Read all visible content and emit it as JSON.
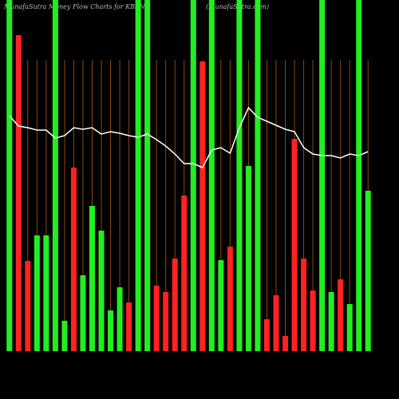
{
  "chart_data": {
    "type": "bar",
    "title": "MunafaSutra Money Flow Charts for KBSN",
    "subtitle": "(MunafaSutra.com)",
    "categories": [
      null,
      null,
      null,
      null,
      null,
      null,
      null,
      null,
      null,
      null,
      null,
      null,
      null,
      null,
      null,
      null,
      null,
      null,
      null,
      null,
      null,
      null,
      null,
      null,
      null,
      null,
      null,
      null,
      null,
      null,
      null,
      null,
      null,
      null,
      null,
      null,
      null,
      null,
      null,
      null
    ],
    "ylim": [
      0,
      440
    ],
    "series": [
      {
        "type": "bar",
        "values": [
          440,
          396,
          113,
          145,
          145,
          440,
          38,
          230,
          95,
          182,
          151,
          51,
          80,
          61,
          440,
          440,
          82,
          74,
          116,
          195,
          440,
          363,
          440,
          114,
          131,
          440,
          232,
          440,
          40,
          70,
          19,
          266,
          116,
          76,
          440,
          74,
          90,
          59,
          440,
          201
        ],
        "colors": [
          "#22ee22",
          "#ff2222",
          "#ff2222",
          "#22ee22",
          "#22ee22",
          "#22ee22",
          "#22ee22",
          "#ff2222",
          "#22ee22",
          "#22ee22",
          "#22ee22",
          "#22ee22",
          "#22ee22",
          "#ff2222",
          "#22ee22",
          "#22ee22",
          "#ff2222",
          "#ff2222",
          "#ff2222",
          "#ff2222",
          "#22ee22",
          "#ff2222",
          "#22ee22",
          "#22ee22",
          "#ff2222",
          "#22ee22",
          "#22ee22",
          "#22ee22",
          "#ff2222",
          "#ff2222",
          "#ff2222",
          "#ff2222",
          "#ff2222",
          "#ff2222",
          "#22ee22",
          "#22ee22",
          "#ff2222",
          "#22ee22",
          "#22ee22",
          "#22ee22"
        ]
      },
      {
        "type": "line",
        "color": "#ffffff",
        "values": [
          295,
          282,
          280,
          277,
          277,
          267,
          270,
          280,
          278,
          280,
          272,
          275,
          273,
          270,
          268,
          272,
          265,
          257,
          247,
          235,
          235,
          230,
          252,
          255,
          248,
          280,
          305,
          293,
          288,
          283,
          278,
          275,
          255,
          247,
          245,
          245,
          242,
          247,
          245,
          250
        ]
      }
    ]
  }
}
